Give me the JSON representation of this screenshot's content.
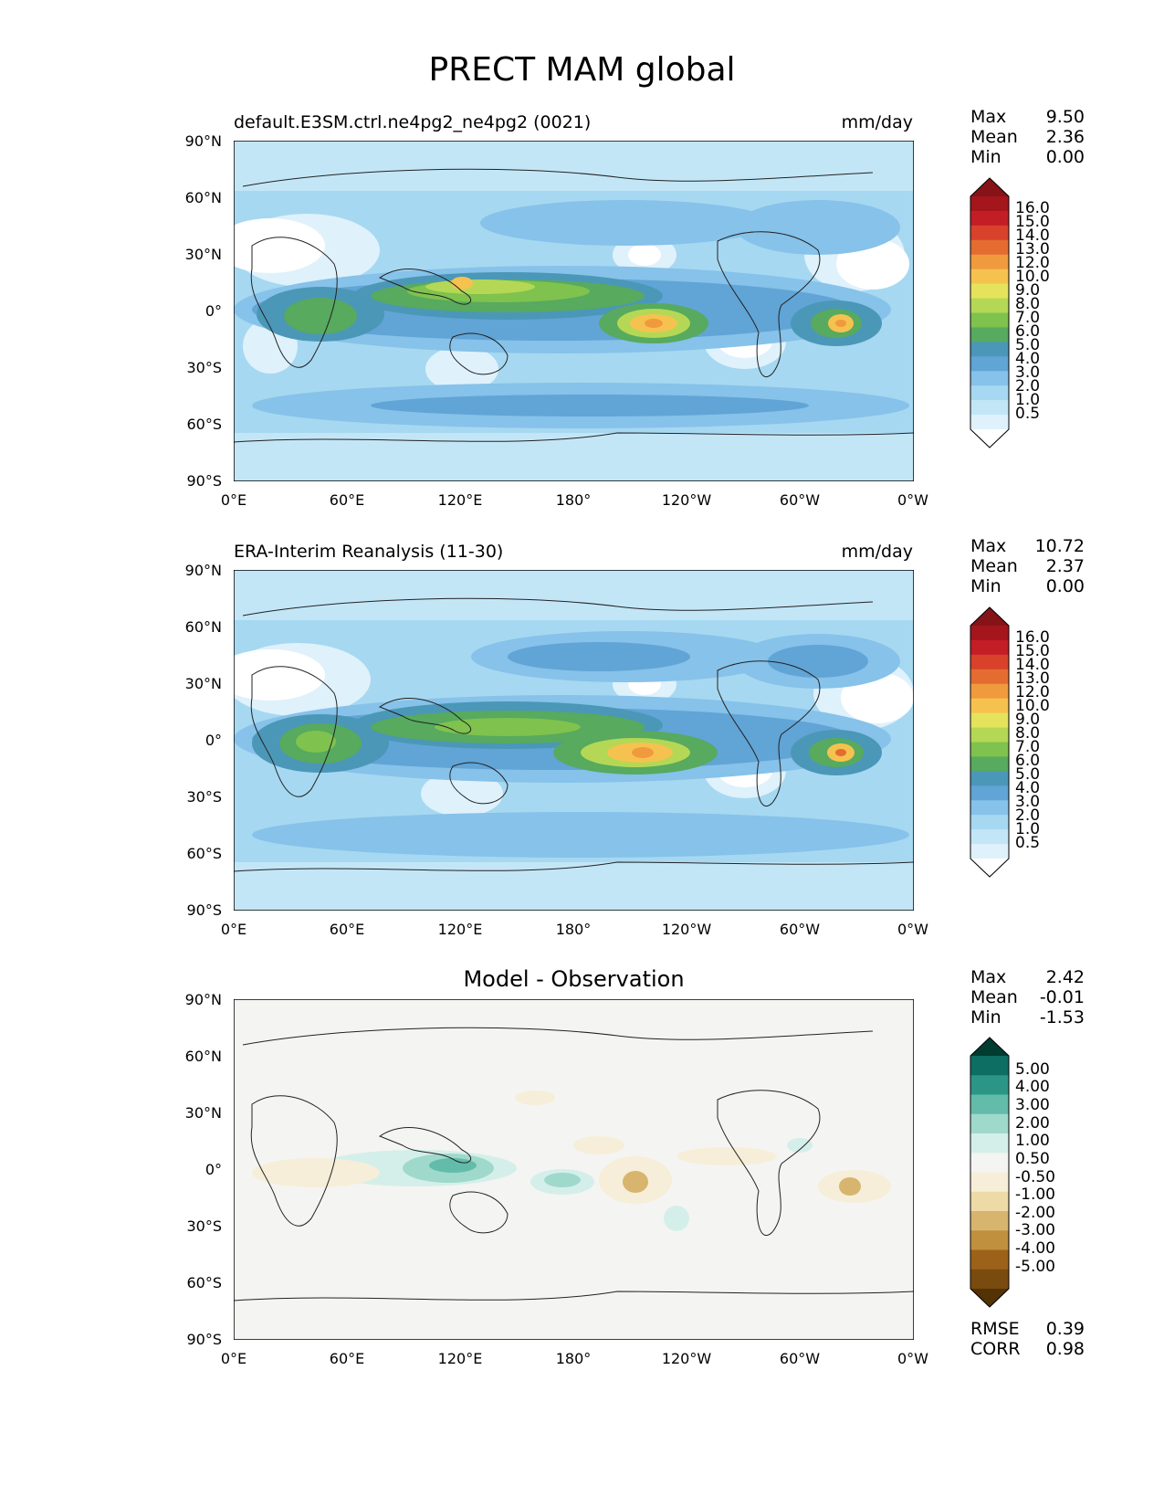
{
  "figure": {
    "suptitle": "PRECT MAM global"
  },
  "colors": {
    "land_line": "#222222",
    "test_ref_levels": [
      "#ffffff",
      "#dff1fb",
      "#c3e6f7",
      "#a6d8f1",
      "#86c2e9",
      "#61a4d6",
      "#4b97b8",
      "#57aa5e",
      "#7fc24e",
      "#b4d855",
      "#e5e35c",
      "#f6c24f",
      "#f09a3e",
      "#e46c30",
      "#d8422b",
      "#c31e26",
      "#a4151c",
      "#851318"
    ],
    "diff_levels": [
      "#533206",
      "#7a4b0e",
      "#9d6219",
      "#c0903f",
      "#d7b56e",
      "#eedaa6",
      "#f6eed8",
      "#f4f4f2",
      "#d4efea",
      "#9fd9cb",
      "#62bca9",
      "#2b9685",
      "#0d6e63",
      "#003c30"
    ],
    "diff_background": "#f4f4f2"
  },
  "axes_ticks": {
    "lat": [
      "90°N",
      "60°N",
      "30°N",
      "0°",
      "30°S",
      "60°S",
      "90°S"
    ],
    "lon": [
      "0°E",
      "60°E",
      "120°E",
      "180°",
      "120°W",
      "60°W",
      "0°W"
    ]
  },
  "panels": [
    {
      "id": "test",
      "left_title": "default.E3SM.ctrl.ne4pg2_ne4pg2 (0021)",
      "right_title": "mm/day",
      "center_title": "",
      "stats": [
        {
          "name": "Max",
          "value": "9.50"
        },
        {
          "name": "Mean",
          "value": "2.36"
        },
        {
          "name": "Min",
          "value": "0.00"
        }
      ],
      "colorbar_labels": [
        "16.0",
        "15.0",
        "14.0",
        "13.0",
        "12.0",
        "10.0",
        "9.0",
        "8.0",
        "7.0",
        "6.0",
        "5.0",
        "4.0",
        "3.0",
        "2.0",
        "1.0",
        "0.5"
      ]
    },
    {
      "id": "ref",
      "left_title": "ERA-Interim Reanalysis (11-30)",
      "right_title": "mm/day",
      "center_title": "",
      "stats": [
        {
          "name": "Max",
          "value": "10.72"
        },
        {
          "name": "Mean",
          "value": "2.37"
        },
        {
          "name": "Min",
          "value": "0.00"
        }
      ],
      "colorbar_labels": [
        "16.0",
        "15.0",
        "14.0",
        "13.0",
        "12.0",
        "10.0",
        "9.0",
        "8.0",
        "7.0",
        "6.0",
        "5.0",
        "4.0",
        "3.0",
        "2.0",
        "1.0",
        "0.5"
      ]
    },
    {
      "id": "diff",
      "left_title": "",
      "right_title": "",
      "center_title": "Model - Observation",
      "stats": [
        {
          "name": "Max",
          "value": "2.42"
        },
        {
          "name": "Mean",
          "value": "-0.01"
        },
        {
          "name": "Min",
          "value": "-1.53"
        }
      ],
      "colorbar_labels": [
        "5.00",
        "4.00",
        "3.00",
        "2.00",
        "1.00",
        "0.50",
        "-0.50",
        "-1.00",
        "-2.00",
        "-3.00",
        "-4.00",
        "-5.00"
      ],
      "metrics": [
        {
          "name": "RMSE",
          "value": "0.39"
        },
        {
          "name": "CORR",
          "value": "0.98"
        }
      ]
    }
  ]
}
